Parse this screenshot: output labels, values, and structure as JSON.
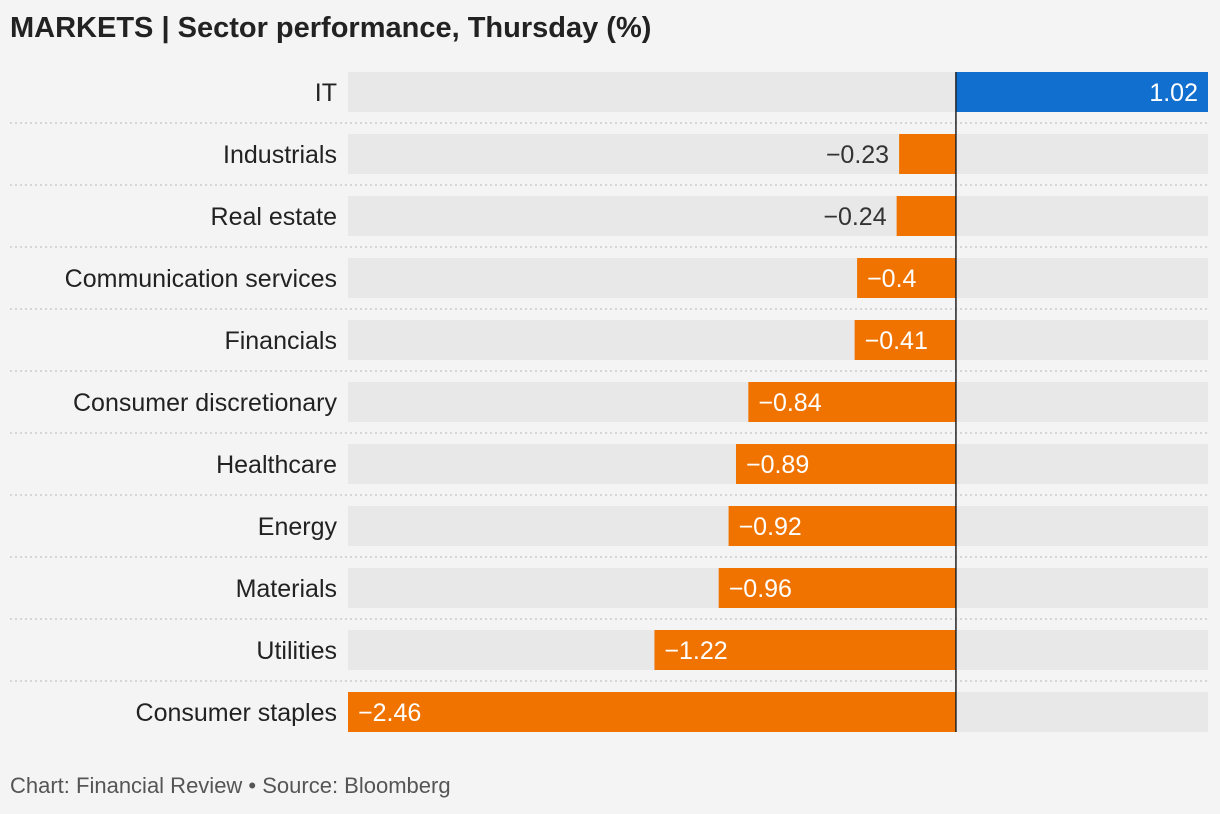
{
  "header": {
    "title": "MARKETS | Sector performance, Thursday (%)"
  },
  "footer": {
    "credit": "Chart: Financial Review • Source: Bloomberg"
  },
  "colors": {
    "positive": "#1170cf",
    "negative": "#f07300",
    "track": "#e8e8e8",
    "background": "#f4f4f4",
    "zero_line": "#222222",
    "separator": "#c4c4c4"
  },
  "chart_data": {
    "type": "bar",
    "orientation": "horizontal",
    "title": "MARKETS | Sector performance, Thursday (%)",
    "xlabel": "",
    "ylabel": "",
    "xlim": [
      -2.46,
      1.02
    ],
    "grid": false,
    "legend": "none",
    "categories": [
      "IT",
      "Industrials",
      "Real estate",
      "Communication services",
      "Financials",
      "Consumer discretionary",
      "Healthcare",
      "Energy",
      "Materials",
      "Utilities",
      "Consumer staples"
    ],
    "values": [
      1.02,
      -0.23,
      -0.24,
      -0.4,
      -0.41,
      -0.84,
      -0.89,
      -0.92,
      -0.96,
      -1.22,
      -2.46
    ],
    "value_labels": [
      "1.02",
      "−0.23",
      "−0.24",
      "−0.4",
      "−0.41",
      "−0.84",
      "−0.89",
      "−0.92",
      "−0.96",
      "−1.22",
      "−2.46"
    ]
  }
}
